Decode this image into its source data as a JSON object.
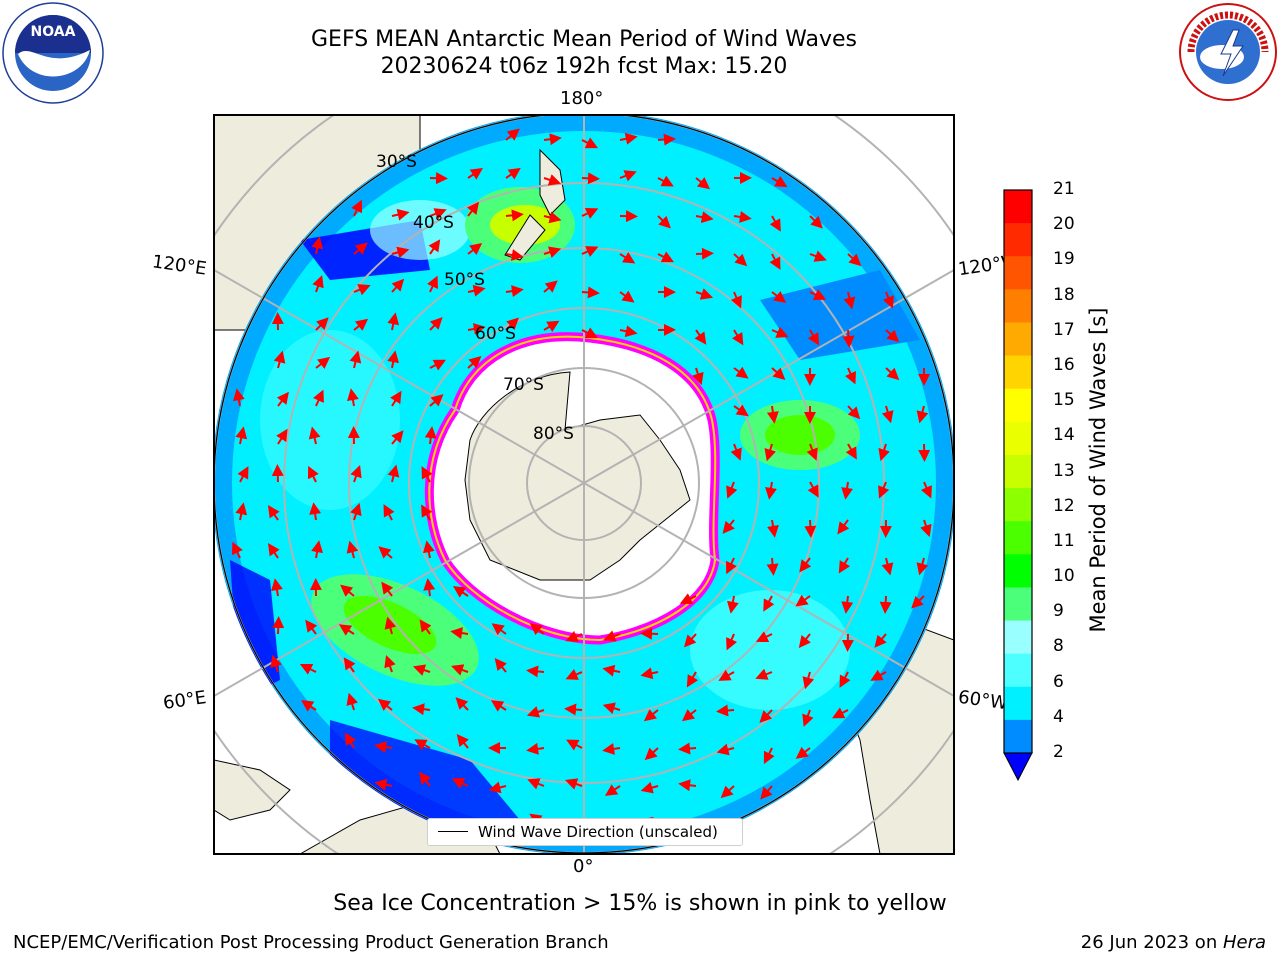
{
  "title": {
    "line1": "GEFS MEAN Antarctic Mean Period of Wind Waves",
    "line2": "20230624 t06z 192h fcst   Max: 15.20"
  },
  "logos": {
    "left": "noaa-logo",
    "right": "national-weather-service-logo"
  },
  "map": {
    "projection": "south-polar-stereographic",
    "longitude_labels": {
      "top": "180°",
      "bottom": "0°",
      "left_upper": "120°E",
      "left_lower": "60°E",
      "right_upper": "120°W",
      "right_lower": "60°W"
    },
    "latitude_labels": [
      "30°S",
      "40°S",
      "50°S",
      "60°S",
      "70°S",
      "80°S"
    ],
    "legend": "Wind Wave Direction (unscaled)"
  },
  "colorbar": {
    "label": "Mean Period of Wind Waves [s]",
    "ticks": [
      "21",
      "20",
      "19",
      "18",
      "17",
      "16",
      "15",
      "14",
      "13",
      "12",
      "11",
      "10",
      "9",
      "8",
      "6",
      "4",
      "2"
    ],
    "colors": [
      "#ff0000",
      "#ff2a00",
      "#ff5500",
      "#ff7f00",
      "#ffaa00",
      "#ffd400",
      "#ffff00",
      "#eaff00",
      "#c8ff00",
      "#8cff00",
      "#4cff00",
      "#00ff00",
      "#4cff7a",
      "#9affff",
      "#4dffff",
      "#00f0ff",
      "#008cff"
    ],
    "under_color": "#0000ff"
  },
  "notes": {
    "sea_ice": "Sea Ice Concentration > 15% is shown in pink to yellow"
  },
  "footer": {
    "left": "NCEP/EMC/Verification Post Processing Product Generation Branch",
    "right_prefix": "26 Jun 2023 on ",
    "right_machine": "Hera"
  }
}
